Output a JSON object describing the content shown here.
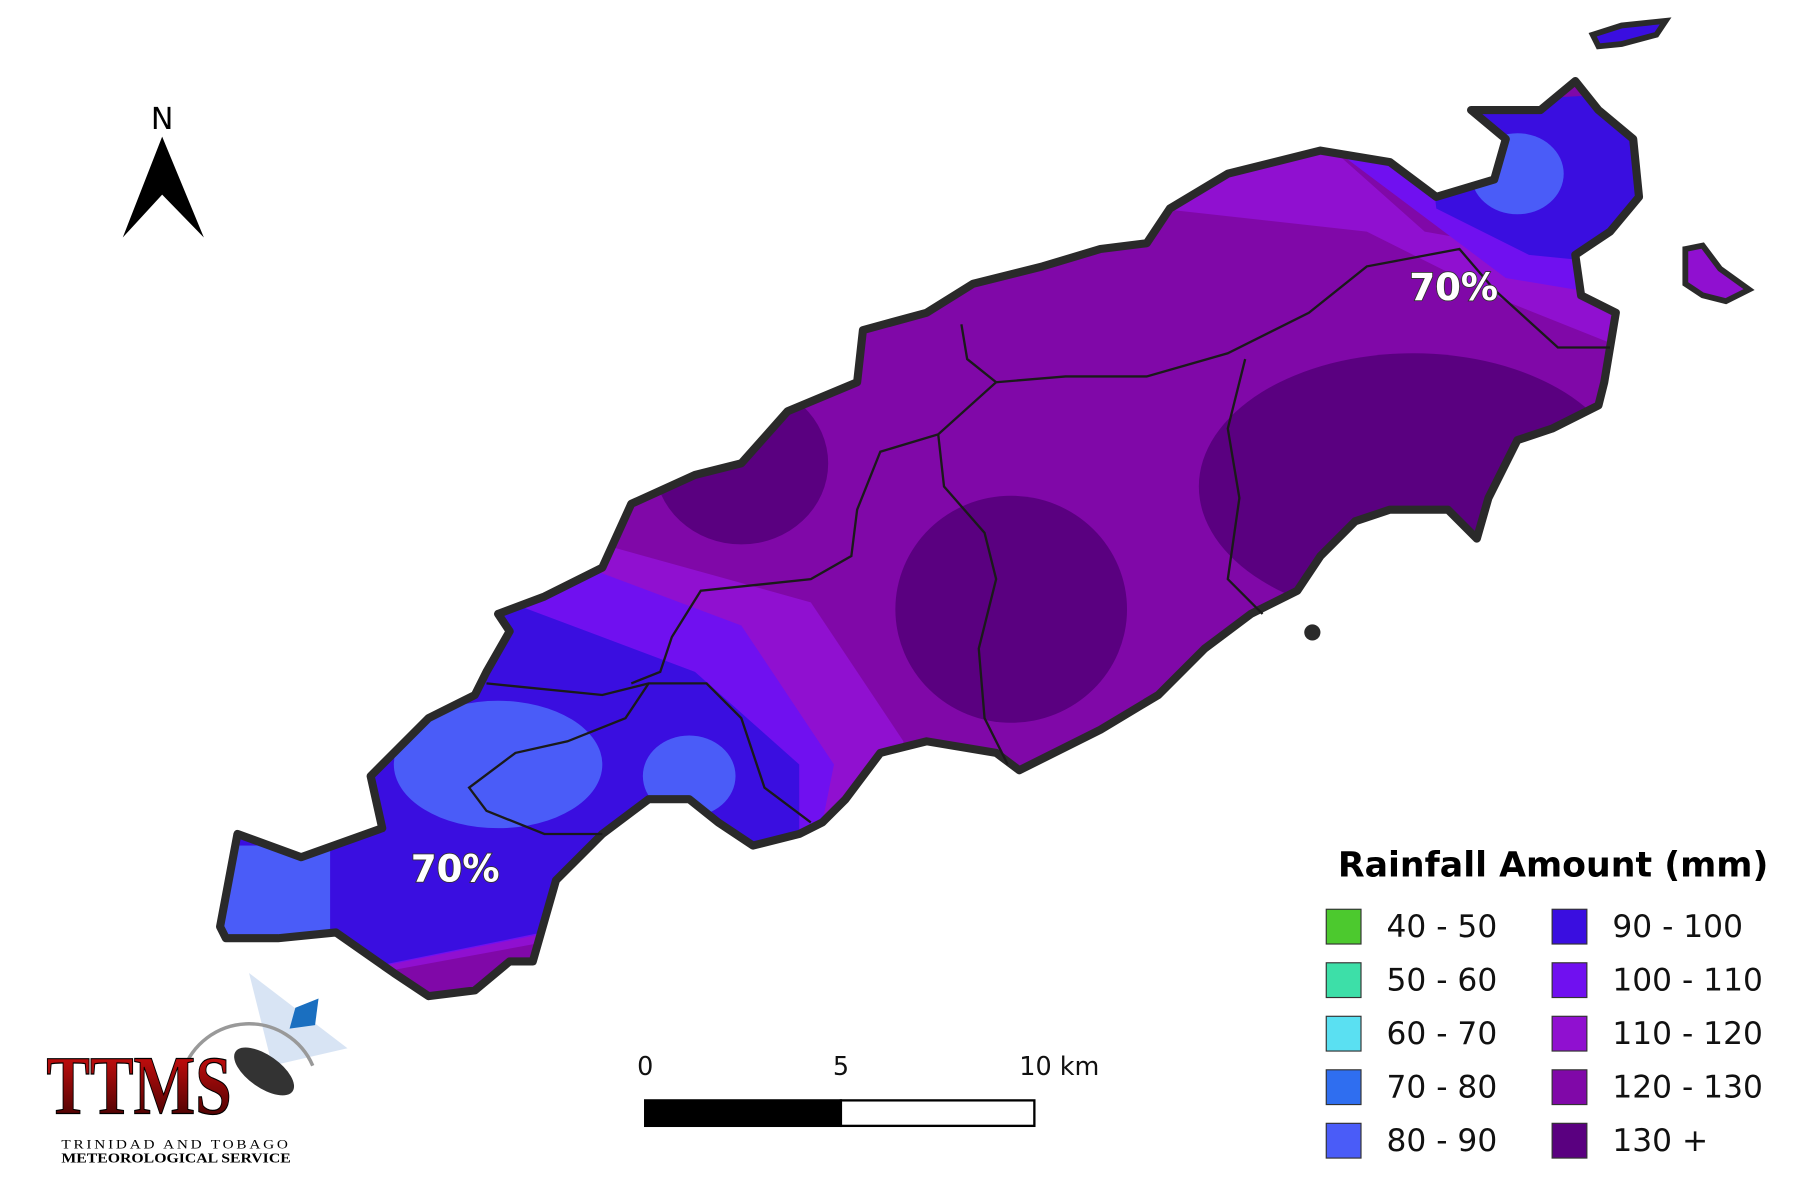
{
  "north_arrow": {
    "label": "N"
  },
  "map": {
    "labels": [
      "70%",
      "70%"
    ]
  },
  "legend": {
    "title": "Rainfall Amount (mm)",
    "items": [
      {
        "label": "40 - 50",
        "color": "#4cc92e"
      },
      {
        "label": "50 - 60",
        "color": "#3ddfa8"
      },
      {
        "label": "60 - 70",
        "color": "#5ae0f2"
      },
      {
        "label": "70 - 80",
        "color": "#2f6ef0"
      },
      {
        "label": "80 - 90",
        "color": "#4a5cf8"
      },
      {
        "label": "90 - 100",
        "color": "#3a0ee0"
      },
      {
        "label": "100 - 110",
        "color": "#7010f0"
      },
      {
        "label": "110 - 120",
        "color": "#9010d0"
      },
      {
        "label": "120 - 130",
        "color": "#8008a8"
      },
      {
        "label": "130 +",
        "color": "#5a0080"
      }
    ]
  },
  "scale_bar": {
    "labels": [
      "0",
      "5",
      "10 km"
    ]
  },
  "logo": {
    "acronym": "TTMS",
    "line1": "TRINIDAD AND TOBAGO",
    "line2": "METEOROLOGICAL SERVICE"
  }
}
